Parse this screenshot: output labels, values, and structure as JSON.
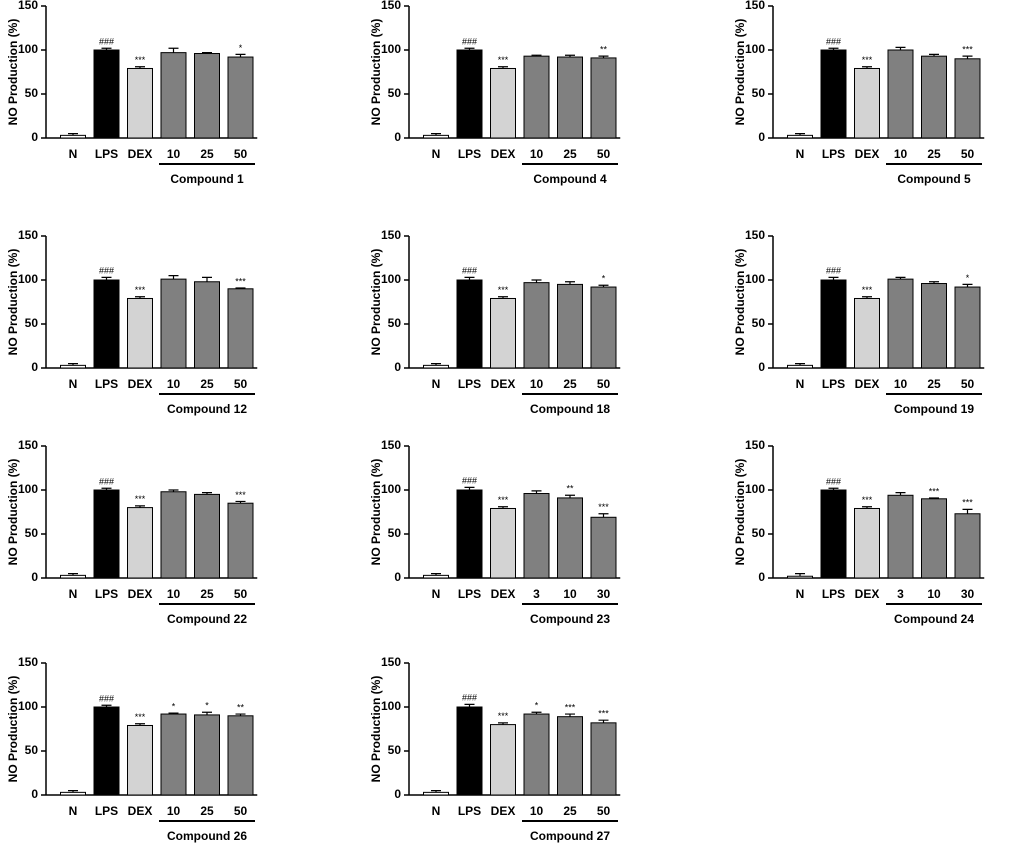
{
  "chart_data": [
    {
      "type": "bar",
      "y_label": "NO Production (%)",
      "group_label": "Compound 1",
      "categories": [
        "N",
        "LPS",
        "DEX",
        "10",
        "25",
        "50"
      ],
      "values": [
        3,
        100,
        79,
        97,
        96,
        92
      ],
      "errors": [
        2,
        2,
        2,
        5,
        1,
        3
      ],
      "annotations": [
        null,
        "###",
        "***",
        null,
        null,
        "*"
      ],
      "colors": [
        "#ffffff",
        "#000000",
        "#d3d3d3",
        "#808080",
        "#808080",
        "#808080"
      ],
      "ylim": [
        0,
        150
      ],
      "yticks": [
        0,
        50,
        100,
        150
      ]
    },
    {
      "type": "bar",
      "y_label": "NO Production (%)",
      "group_label": "Compound 4",
      "categories": [
        "N",
        "LPS",
        "DEX",
        "10",
        "25",
        "50"
      ],
      "values": [
        3,
        100,
        79,
        93,
        92,
        91
      ],
      "errors": [
        2,
        2,
        2,
        1,
        2,
        2
      ],
      "annotations": [
        null,
        "###",
        "***",
        null,
        null,
        "**"
      ],
      "colors": [
        "#ffffff",
        "#000000",
        "#d3d3d3",
        "#808080",
        "#808080",
        "#808080"
      ],
      "ylim": [
        0,
        150
      ],
      "yticks": [
        0,
        50,
        100,
        150
      ]
    },
    {
      "type": "bar",
      "y_label": "NO Production (%)",
      "group_label": "Compound 5",
      "categories": [
        "N",
        "LPS",
        "DEX",
        "10",
        "25",
        "50"
      ],
      "values": [
        3,
        100,
        79,
        100,
        93,
        90
      ],
      "errors": [
        2,
        2,
        2,
        3,
        2,
        3
      ],
      "annotations": [
        null,
        "###",
        "***",
        null,
        null,
        "***"
      ],
      "colors": [
        "#ffffff",
        "#000000",
        "#d3d3d3",
        "#808080",
        "#808080",
        "#808080"
      ],
      "ylim": [
        0,
        150
      ],
      "yticks": [
        0,
        50,
        100,
        150
      ]
    },
    {
      "type": "bar",
      "y_label": "NO Production (%)",
      "group_label": "Compound 12",
      "categories": [
        "N",
        "LPS",
        "DEX",
        "10",
        "25",
        "50"
      ],
      "values": [
        3,
        100,
        79,
        101,
        98,
        90
      ],
      "errors": [
        2,
        3,
        2,
        4,
        5,
        1
      ],
      "annotations": [
        null,
        "###",
        "***",
        null,
        null,
        "***"
      ],
      "colors": [
        "#ffffff",
        "#000000",
        "#d3d3d3",
        "#808080",
        "#808080",
        "#808080"
      ],
      "ylim": [
        0,
        150
      ],
      "yticks": [
        0,
        50,
        100,
        150
      ]
    },
    {
      "type": "bar",
      "y_label": "NO Production (%)",
      "group_label": "Compound 18",
      "categories": [
        "N",
        "LPS",
        "DEX",
        "10",
        "25",
        "50"
      ],
      "values": [
        3,
        100,
        79,
        97,
        95,
        92
      ],
      "errors": [
        2,
        3,
        2,
        3,
        3,
        2
      ],
      "annotations": [
        null,
        "###",
        "***",
        null,
        null,
        "*"
      ],
      "colors": [
        "#ffffff",
        "#000000",
        "#d3d3d3",
        "#808080",
        "#808080",
        "#808080"
      ],
      "ylim": [
        0,
        150
      ],
      "yticks": [
        0,
        50,
        100,
        150
      ]
    },
    {
      "type": "bar",
      "y_label": "NO Production (%)",
      "group_label": "Compound 19",
      "categories": [
        "N",
        "LPS",
        "DEX",
        "10",
        "25",
        "50"
      ],
      "values": [
        3,
        100,
        79,
        101,
        96,
        92
      ],
      "errors": [
        2,
        3,
        2,
        2,
        2,
        3
      ],
      "annotations": [
        null,
        "###",
        "***",
        null,
        null,
        "*"
      ],
      "colors": [
        "#ffffff",
        "#000000",
        "#d3d3d3",
        "#808080",
        "#808080",
        "#808080"
      ],
      "ylim": [
        0,
        150
      ],
      "yticks": [
        0,
        50,
        100,
        150
      ]
    },
    {
      "type": "bar",
      "y_label": "NO Production (%)",
      "group_label": "Compound 22",
      "categories": [
        "N",
        "LPS",
        "DEX",
        "10",
        "25",
        "50"
      ],
      "values": [
        3,
        100,
        80,
        98,
        95,
        85
      ],
      "errors": [
        2,
        2,
        2,
        2,
        2,
        2
      ],
      "annotations": [
        null,
        "###",
        "***",
        null,
        null,
        "***"
      ],
      "colors": [
        "#ffffff",
        "#000000",
        "#d3d3d3",
        "#808080",
        "#808080",
        "#808080"
      ],
      "ylim": [
        0,
        150
      ],
      "yticks": [
        0,
        50,
        100,
        150
      ]
    },
    {
      "type": "bar",
      "y_label": "NO Production (%)",
      "group_label": "Compound 23",
      "categories": [
        "N",
        "LPS",
        "DEX",
        "3",
        "10",
        "30"
      ],
      "values": [
        3,
        100,
        79,
        96,
        91,
        69
      ],
      "errors": [
        2,
        3,
        2,
        3,
        3,
        4
      ],
      "annotations": [
        null,
        "###",
        "***",
        null,
        "**",
        "***"
      ],
      "colors": [
        "#ffffff",
        "#000000",
        "#d3d3d3",
        "#808080",
        "#808080",
        "#808080"
      ],
      "ylim": [
        0,
        150
      ],
      "yticks": [
        0,
        50,
        100,
        150
      ]
    },
    {
      "type": "bar",
      "y_label": "NO Production (%)",
      "group_label": "Compound 24",
      "categories": [
        "N",
        "LPS",
        "DEX",
        "3",
        "10",
        "30"
      ],
      "values": [
        2,
        100,
        79,
        94,
        90,
        73
      ],
      "errors": [
        3,
        2,
        2,
        3,
        1,
        5
      ],
      "annotations": [
        null,
        "###",
        "***",
        null,
        "***",
        "***"
      ],
      "colors": [
        "#ffffff",
        "#000000",
        "#d3d3d3",
        "#808080",
        "#808080",
        "#808080"
      ],
      "ylim": [
        0,
        150
      ],
      "yticks": [
        0,
        50,
        100,
        150
      ]
    },
    {
      "type": "bar",
      "y_label": "NO Production (%)",
      "group_label": "Compound 26",
      "categories": [
        "N",
        "LPS",
        "DEX",
        "10",
        "25",
        "50"
      ],
      "values": [
        3,
        100,
        79,
        92,
        91,
        90
      ],
      "errors": [
        2,
        2,
        2,
        1,
        3,
        2
      ],
      "annotations": [
        null,
        "###",
        "***",
        "*",
        "*",
        "**"
      ],
      "colors": [
        "#ffffff",
        "#000000",
        "#d3d3d3",
        "#808080",
        "#808080",
        "#808080"
      ],
      "ylim": [
        0,
        150
      ],
      "yticks": [
        0,
        50,
        100,
        150
      ]
    },
    {
      "type": "bar",
      "y_label": "NO Production (%)",
      "group_label": "Compound 27",
      "categories": [
        "N",
        "LPS",
        "DEX",
        "10",
        "25",
        "50"
      ],
      "values": [
        3,
        100,
        80,
        92,
        89,
        82
      ],
      "errors": [
        2,
        3,
        2,
        2,
        3,
        3
      ],
      "annotations": [
        null,
        "###",
        "***",
        "*",
        "***",
        "***"
      ],
      "colors": [
        "#ffffff",
        "#000000",
        "#d3d3d3",
        "#808080",
        "#808080",
        "#808080"
      ],
      "ylim": [
        0,
        150
      ],
      "yticks": [
        0,
        50,
        100,
        150
      ]
    }
  ]
}
